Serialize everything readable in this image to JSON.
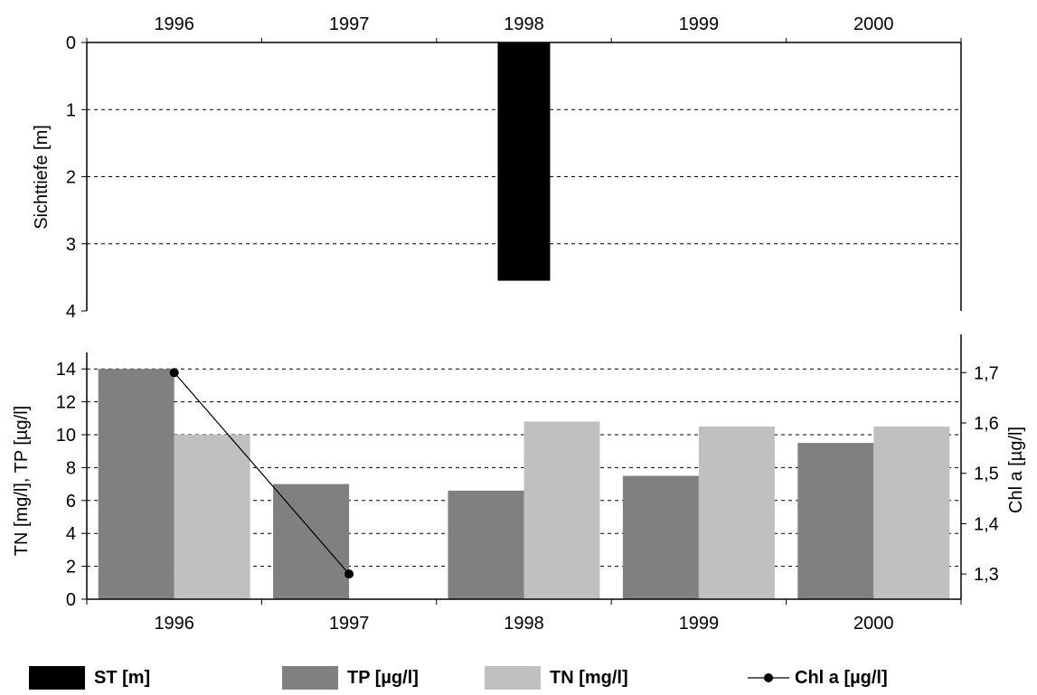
{
  "chart_data": [
    {
      "type": "bar",
      "panel": "top",
      "x_tick_labels": [
        "1996",
        "1997",
        "1998",
        "1999",
        "2000"
      ],
      "ylabel": "Sichttiefe [m]",
      "ylim": [
        0,
        4
      ],
      "y_inverted": true,
      "y_ticks": [
        "0",
        "1",
        "2",
        "3",
        "4"
      ],
      "grid": "dashed horizontal",
      "series": [
        {
          "name": "ST [m]",
          "color": "#000000",
          "values": [
            null,
            null,
            3.55,
            null,
            null
          ]
        }
      ]
    },
    {
      "type": "bar",
      "panel": "bottom",
      "x_tick_labels": [
        "1996",
        "1997",
        "1998",
        "1999",
        "2000"
      ],
      "ylabel": "TN [mg/l], TP [µg/l]",
      "ylim": [
        0,
        15
      ],
      "y_ticks": [
        "0",
        "2",
        "4",
        "6",
        "8",
        "10",
        "12",
        "14"
      ],
      "y2label": "Chl a [µg/l]",
      "y2lim": [
        1.25,
        1.74
      ],
      "y2_ticks": [
        "1,3",
        "1,4",
        "1,5",
        "1,6",
        "1,7"
      ],
      "grid": "dashed horizontal",
      "series": [
        {
          "name": "TP [µg/l]",
          "color": "#808080",
          "values": [
            14.0,
            7.0,
            6.6,
            7.5,
            9.5
          ]
        },
        {
          "name": "TN [mg/l]",
          "color": "#c0c0c0",
          "values": [
            10.0,
            null,
            10.8,
            10.5,
            10.5
          ]
        },
        {
          "name": "Chl a [µg/l]",
          "type": "line",
          "axis": "right",
          "color": "#000000",
          "values": [
            1.7,
            1.3,
            null,
            null,
            null
          ]
        }
      ]
    }
  ],
  "legend": {
    "items": [
      {
        "label": "ST [m]",
        "color": "#000000",
        "kind": "box"
      },
      {
        "label": "TP [µg/l]",
        "color": "#808080",
        "kind": "box"
      },
      {
        "label": "TN [mg/l]",
        "color": "#c0c0c0",
        "kind": "box"
      },
      {
        "label": "Chl a [µg/l]",
        "color": "#000000",
        "kind": "line-marker"
      }
    ]
  }
}
